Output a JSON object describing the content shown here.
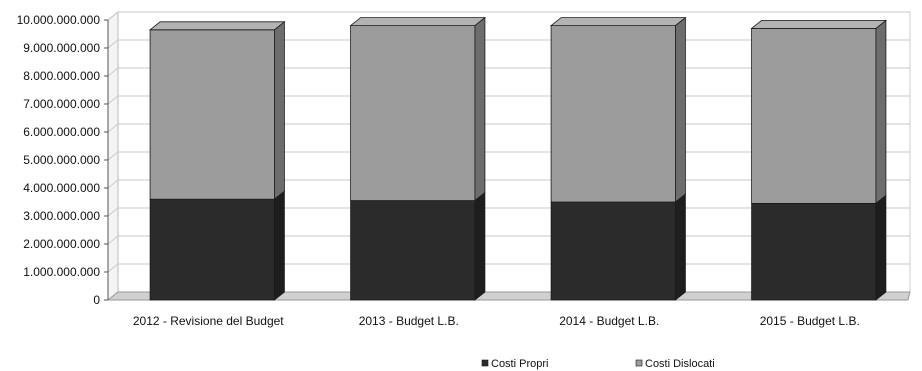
{
  "chart_data": {
    "type": "bar",
    "stacked": true,
    "three_d": true,
    "categories": [
      "2012 - Revisione del Budget",
      "2013 - Budget L.B.",
      "2014 - Budget L.B.",
      "2015 - Budget L.B."
    ],
    "series": [
      {
        "name": "Costi Propri",
        "values": [
          3600000000,
          3550000000,
          3500000000,
          3450000000
        ],
        "color": "#2b2b2b"
      },
      {
        "name": "Costi Dislocati",
        "values": [
          6050000000,
          6250000000,
          6300000000,
          6250000000
        ],
        "color": "#9c9c9c"
      }
    ],
    "yticks": [
      "0",
      "1.000.000.000",
      "2.000.000.000",
      "3.000.000.000",
      "4.000.000.000",
      "5.000.000.000",
      "6.000.000.000",
      "7.000.000.000",
      "8.000.000.000",
      "9.000.000.000",
      "10.000.000.000"
    ],
    "ylim": [
      0,
      10000000000
    ],
    "grid": true,
    "legend_position": "bottom"
  }
}
